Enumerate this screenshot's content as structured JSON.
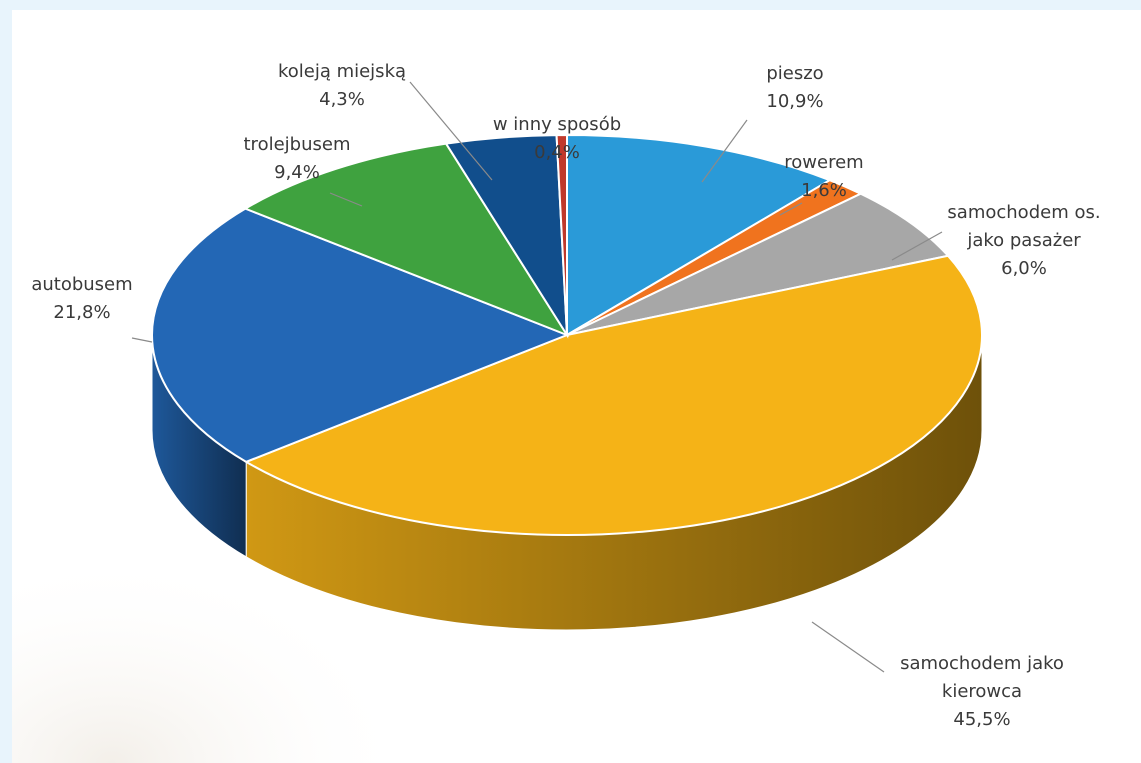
{
  "chart_data": {
    "type": "pie",
    "variant": "3d",
    "legend": "none (leader-line labels)",
    "slices": [
      {
        "label_lines": [
          "pieszo"
        ],
        "value_text": "10,9%",
        "value": 10.9,
        "color": "#2a9ad8"
      },
      {
        "label_lines": [
          "rowerem"
        ],
        "value_text": "1,6%",
        "value": 1.6,
        "color": "#f0731e"
      },
      {
        "label_lines": [
          "samochodem os.",
          "jako pasażer"
        ],
        "value_text": "6,0%",
        "value": 6.0,
        "color": "#a7a7a7"
      },
      {
        "label_lines": [
          "samochodem jako",
          "kierowca"
        ],
        "value_text": "45,5%",
        "value": 45.5,
        "color": "#f5b317"
      },
      {
        "label_lines": [
          "autobusem"
        ],
        "value_text": "21,8%",
        "value": 21.8,
        "color": "#2367b5"
      },
      {
        "label_lines": [
          "trolejbusem"
        ],
        "value_text": "9,4%",
        "value": 9.4,
        "color": "#3fa23f"
      },
      {
        "label_lines": [
          "koleją miejską"
        ],
        "value_text": "4,3%",
        "value": 4.3,
        "color": "#114e8c"
      },
      {
        "label_lines": [
          "w inny sposób"
        ],
        "value_text": "0,4%",
        "value": 0.4,
        "color": "#c0392b"
      }
    ]
  }
}
